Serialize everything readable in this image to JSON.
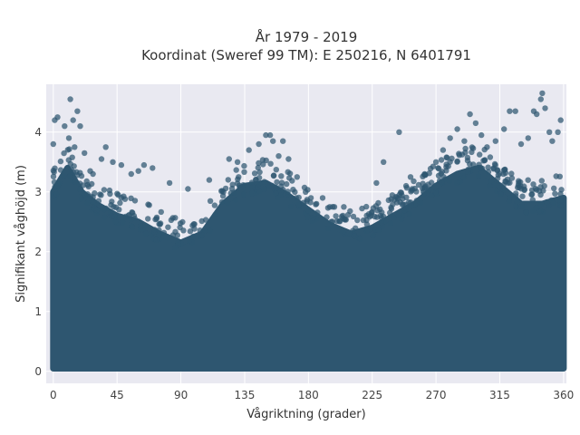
{
  "chart_data": {
    "type": "scatter",
    "title": "År 1979 - 2019",
    "subtitle": "Koordinat (Sweref 99 TM): E 250216, N 6401791",
    "xlabel": "Vågriktning (grader)",
    "ylabel": "Signifikant våghöjd (m)",
    "xlim": [
      -5,
      362
    ],
    "ylim": [
      -0.2,
      4.8
    ],
    "x_ticks": [
      0,
      45,
      90,
      135,
      180,
      225,
      270,
      315,
      360
    ],
    "y_ticks": [
      0,
      1,
      2,
      3,
      4
    ],
    "grid": true,
    "legend": "none",
    "colors": {
      "marker": "#2e5670",
      "plot_bg": "#e9e9f1",
      "grid": "#ffffff"
    },
    "envelope": {
      "direction_deg": [
        0,
        10,
        20,
        30,
        45,
        60,
        75,
        90,
        105,
        120,
        135,
        150,
        165,
        180,
        195,
        210,
        225,
        240,
        255,
        270,
        285,
        300,
        315,
        330,
        345,
        360
      ],
      "upper_hs_m": [
        3.0,
        3.4,
        3.0,
        2.8,
        2.6,
        2.5,
        2.3,
        2.15,
        2.3,
        2.8,
        3.1,
        3.15,
        2.95,
        2.7,
        2.45,
        2.3,
        2.4,
        2.6,
        2.8,
        3.1,
        3.3,
        3.4,
        3.1,
        2.8,
        2.8,
        2.9
      ],
      "lower_hs_m": 0.05
    },
    "outliers": [
      [
        0,
        3.8
      ],
      [
        1,
        4.2
      ],
      [
        3,
        4.25
      ],
      [
        8,
        4.1
      ],
      [
        11,
        3.9
      ],
      [
        12,
        4.55
      ],
      [
        14,
        4.2
      ],
      [
        15,
        3.75
      ],
      [
        17,
        4.35
      ],
      [
        19,
        4.1
      ],
      [
        22,
        3.65
      ],
      [
        26,
        3.35
      ],
      [
        28,
        3.3
      ],
      [
        34,
        3.55
      ],
      [
        37,
        3.75
      ],
      [
        42,
        3.5
      ],
      [
        48,
        3.45
      ],
      [
        55,
        3.3
      ],
      [
        60,
        3.35
      ],
      [
        64,
        3.45
      ],
      [
        70,
        3.4
      ],
      [
        82,
        3.15
      ],
      [
        95,
        3.05
      ],
      [
        110,
        3.2
      ],
      [
        124,
        3.55
      ],
      [
        130,
        3.5
      ],
      [
        138,
        3.7
      ],
      [
        145,
        3.8
      ],
      [
        150,
        3.95
      ],
      [
        153,
        3.95
      ],
      [
        155,
        3.85
      ],
      [
        159,
        3.6
      ],
      [
        162,
        3.85
      ],
      [
        166,
        3.55
      ],
      [
        172,
        3.25
      ],
      [
        178,
        3.0
      ],
      [
        190,
        2.9
      ],
      [
        205,
        2.75
      ],
      [
        228,
        3.15
      ],
      [
        233,
        3.5
      ],
      [
        244,
        4.0
      ],
      [
        252,
        3.25
      ],
      [
        262,
        3.3
      ],
      [
        270,
        3.5
      ],
      [
        275,
        3.7
      ],
      [
        280,
        3.9
      ],
      [
        285,
        4.05
      ],
      [
        290,
        3.85
      ],
      [
        294,
        4.3
      ],
      [
        298,
        4.15
      ],
      [
        302,
        3.95
      ],
      [
        306,
        3.75
      ],
      [
        312,
        3.85
      ],
      [
        318,
        4.05
      ],
      [
        322,
        4.35
      ],
      [
        326,
        4.35
      ],
      [
        330,
        3.8
      ],
      [
        335,
        3.9
      ],
      [
        339,
        4.35
      ],
      [
        341,
        4.3
      ],
      [
        344,
        4.55
      ],
      [
        345,
        4.65
      ],
      [
        347,
        4.4
      ],
      [
        350,
        4.0
      ],
      [
        352,
        3.85
      ],
      [
        356,
        4.0
      ],
      [
        358,
        4.2
      ]
    ]
  }
}
